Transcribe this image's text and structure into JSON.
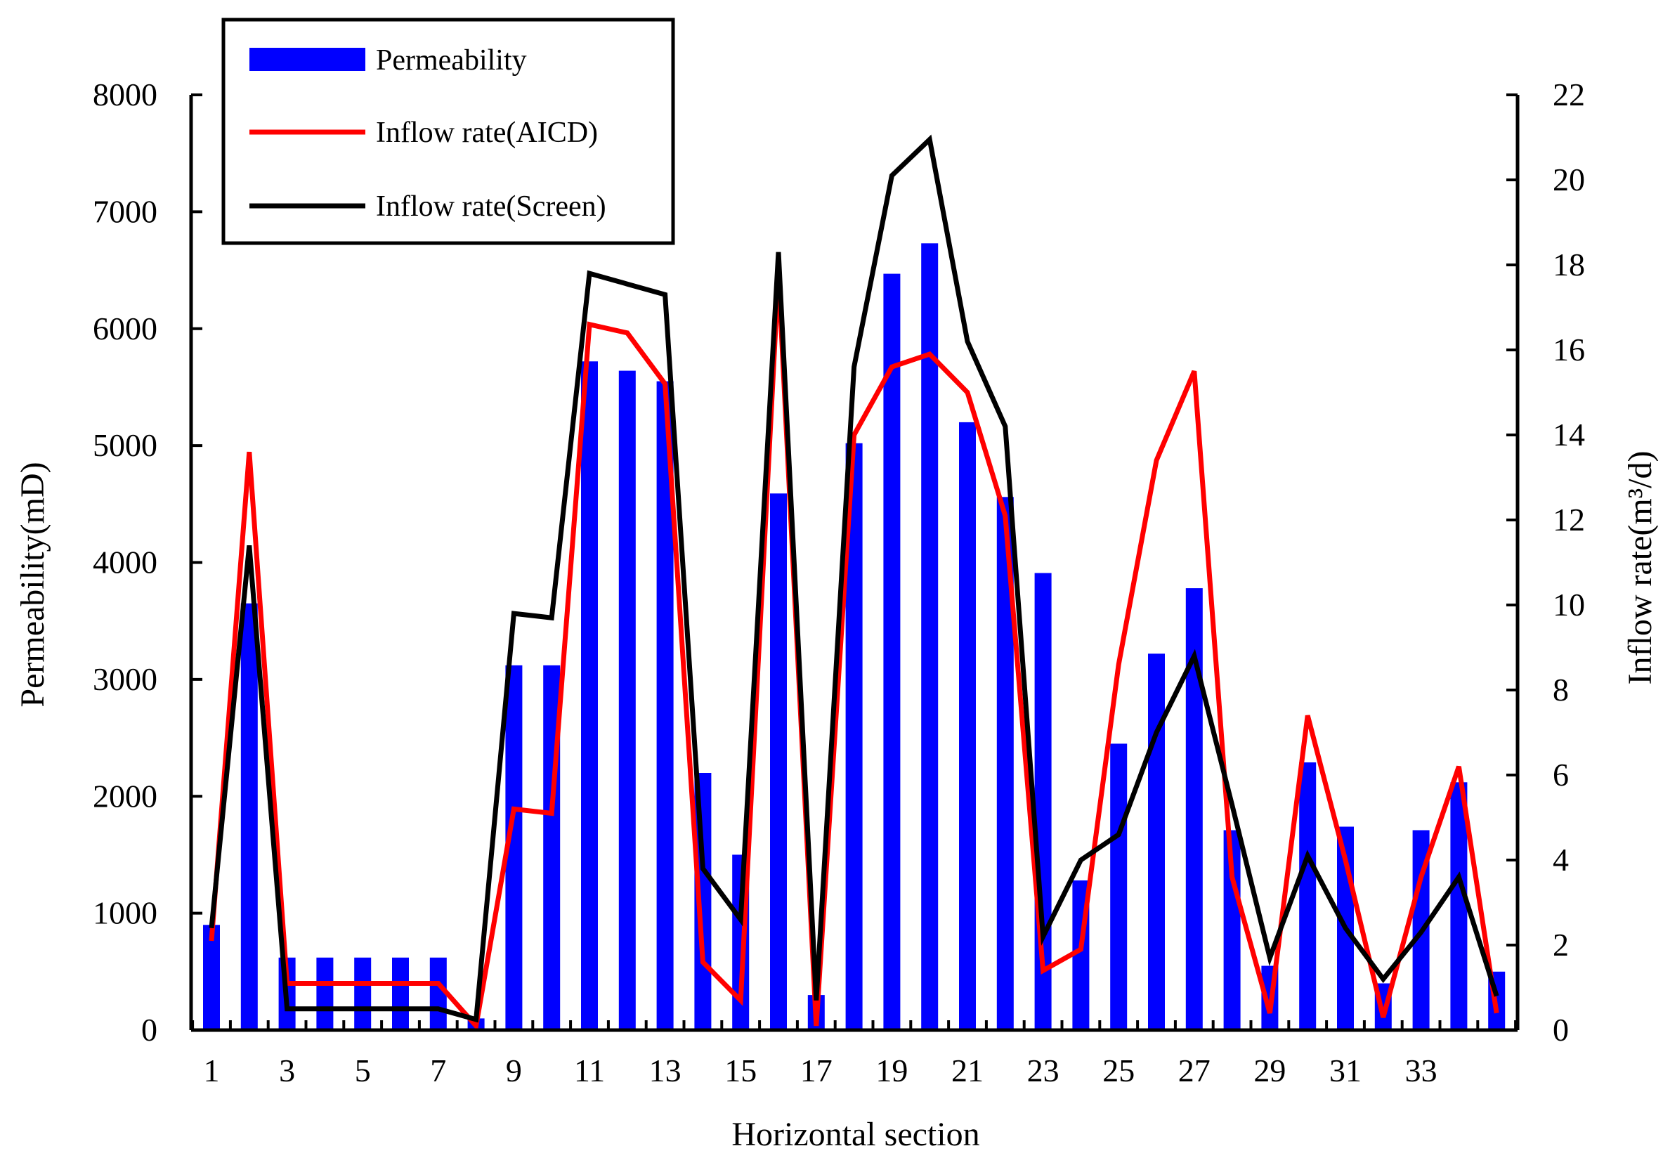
{
  "chart_data": {
    "type": "bar+line",
    "xlabel": "Horizontal section",
    "ylabel_left": "Permeability(mD)",
    "ylabel_right": "Inflow rate(m³/d)",
    "ylim_left": [
      0,
      8000
    ],
    "ylim_right": [
      0,
      22
    ],
    "categories": [
      1,
      2,
      3,
      4,
      5,
      6,
      7,
      8,
      9,
      10,
      11,
      12,
      13,
      14,
      15,
      16,
      17,
      18,
      19,
      20,
      21,
      22,
      23,
      24,
      25,
      26,
      27,
      28,
      29,
      30,
      31,
      32,
      33,
      34,
      35
    ],
    "x_tick_labels": [
      "1",
      "",
      "3",
      "",
      "5",
      "",
      "7",
      "",
      "9",
      "",
      "11",
      "",
      "13",
      "",
      "15",
      "",
      "17",
      "",
      "19",
      "",
      "21",
      "",
      "23",
      "",
      "25",
      "",
      "27",
      "",
      "29",
      "",
      "31",
      "",
      "33",
      "",
      ""
    ],
    "y_left_ticks": [
      "0",
      "1000",
      "2000",
      "3000",
      "4000",
      "5000",
      "6000",
      "7000",
      "8000"
    ],
    "y_right_ticks": [
      "0",
      "2",
      "4",
      "6",
      "8",
      "10",
      "12",
      "14",
      "16",
      "18",
      "20",
      "22"
    ],
    "series": [
      {
        "name": "Permeability",
        "kind": "bar",
        "axis": "left",
        "color": "#0000ff",
        "values": [
          900,
          3650,
          620,
          620,
          620,
          620,
          620,
          100,
          3120,
          3120,
          5720,
          5640,
          5550,
          2200,
          1500,
          4590,
          300,
          5020,
          6470,
          6730,
          5200,
          4560,
          3910,
          1280,
          2450,
          3220,
          3780,
          1710,
          550,
          2290,
          1740,
          400,
          1710,
          2120,
          500
        ]
      },
      {
        "name": "Inflow rate(AICD)",
        "kind": "line",
        "axis": "right",
        "color": "#ff0000",
        "values": [
          2.1,
          13.6,
          1.1,
          1.1,
          1.1,
          1.1,
          1.1,
          0.1,
          5.2,
          5.1,
          16.6,
          16.4,
          15.2,
          1.6,
          0.7,
          17.8,
          0.1,
          14.0,
          15.6,
          15.9,
          15.0,
          12.1,
          1.4,
          1.9,
          8.6,
          13.4,
          15.5,
          3.6,
          0.4,
          7.4,
          4.0,
          0.3,
          3.6,
          6.2,
          0.4
        ]
      },
      {
        "name": "Inflow rate(Screen)",
        "kind": "line",
        "axis": "right",
        "color": "#000000",
        "values": [
          2.4,
          11.4,
          0.5,
          0.5,
          0.5,
          0.5,
          0.5,
          0.25,
          9.8,
          9.7,
          17.8,
          17.55,
          17.3,
          3.8,
          2.6,
          18.3,
          0.7,
          15.6,
          20.1,
          20.95,
          16.2,
          14.2,
          2.2,
          4.0,
          4.6,
          7.0,
          8.8,
          5.3,
          1.7,
          4.1,
          2.4,
          1.2,
          2.3,
          3.6,
          0.8
        ]
      }
    ],
    "legend_position": "top-left"
  }
}
